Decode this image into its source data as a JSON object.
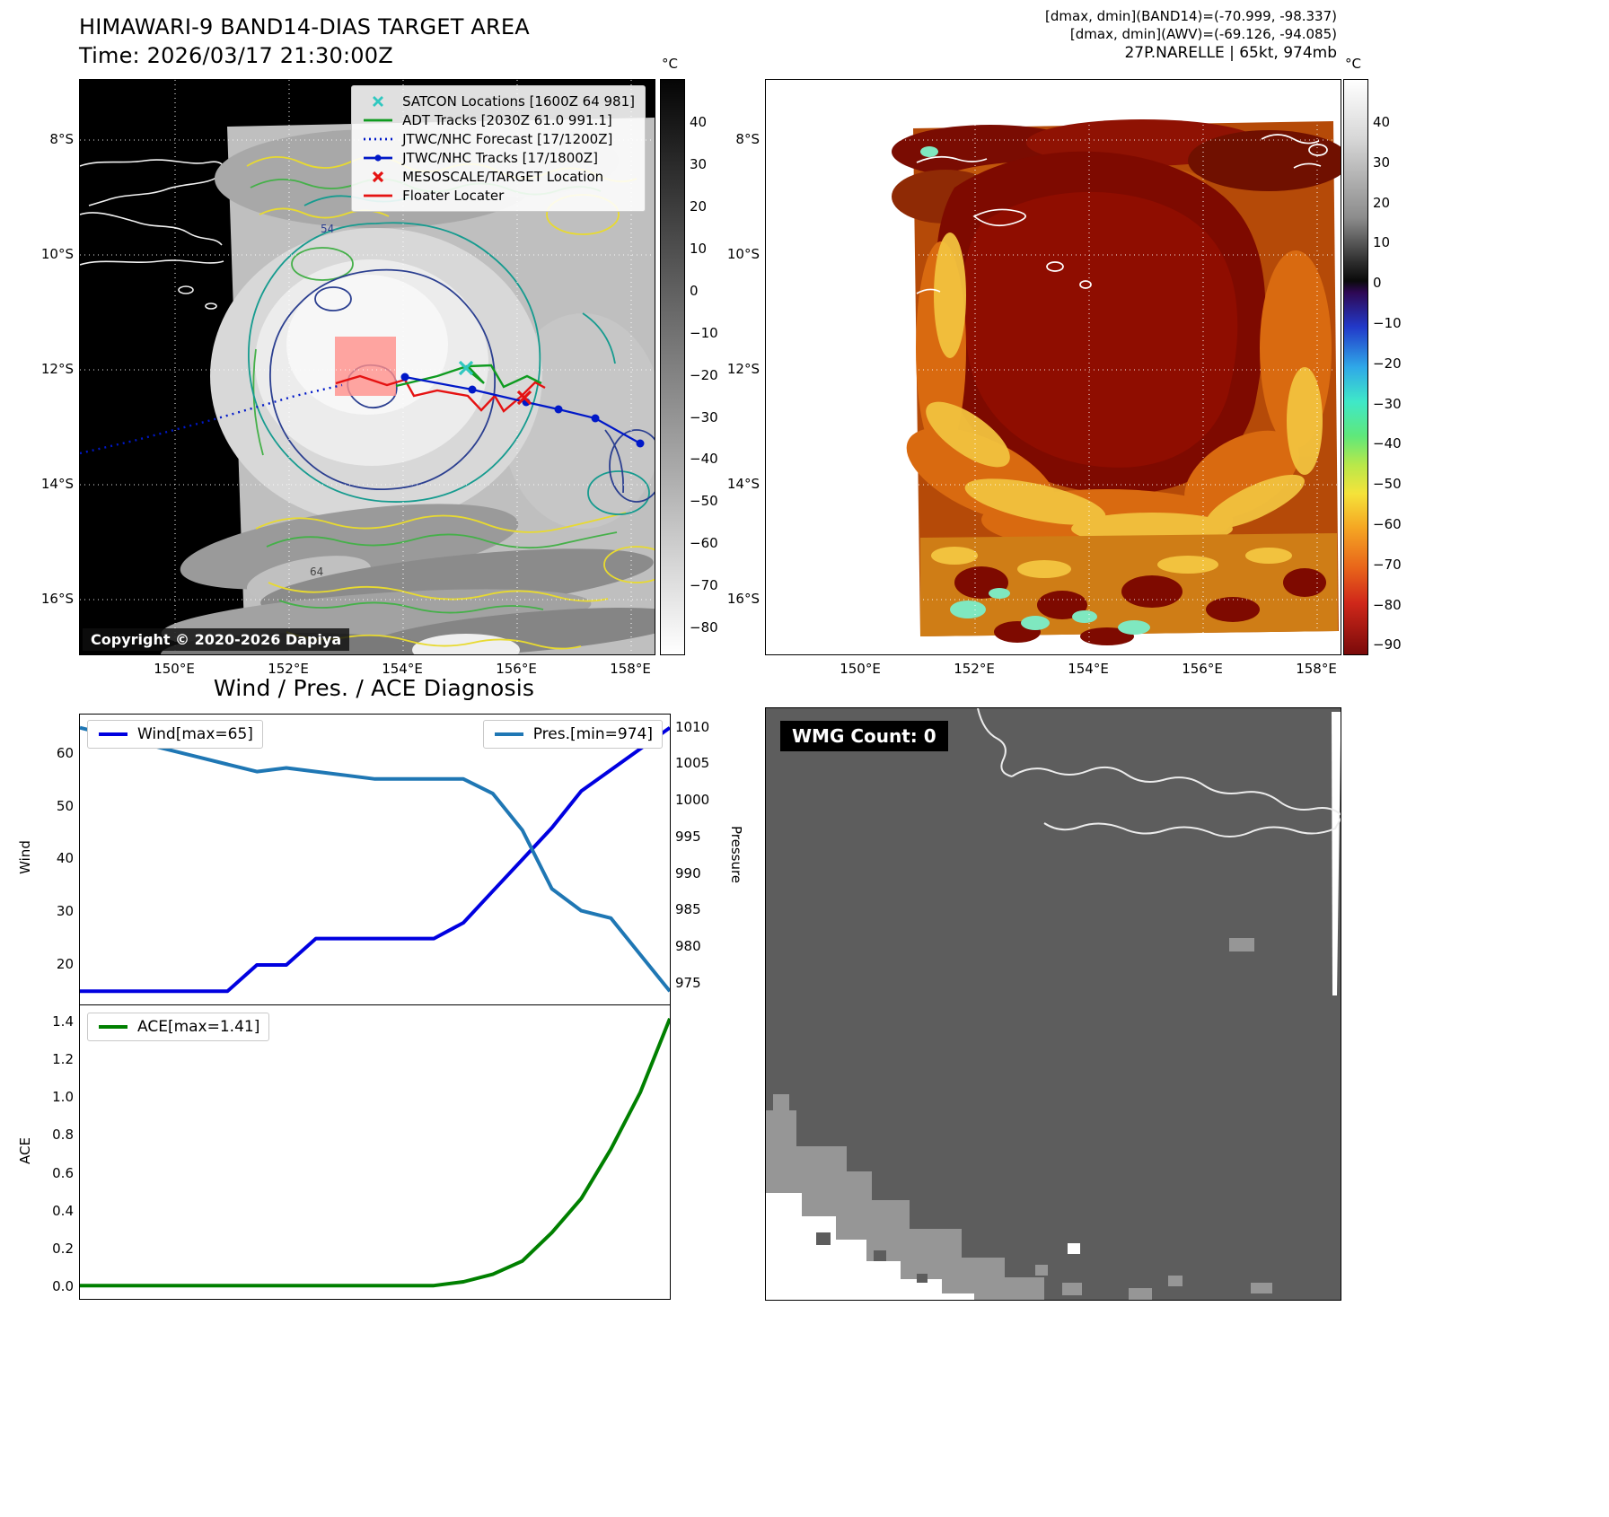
{
  "panel_band14": {
    "title": "HIMAWARI-9 BAND14-DIAS TARGET AREA",
    "subtitle": "Time: 2026/03/17 21:30:00Z",
    "copyright": "Copyright © 2020-2026 Dapiya",
    "colorbar_unit": "°C",
    "colorbar_ticks": [
      "40",
      "30",
      "20",
      "10",
      "0",
      "−10",
      "−20",
      "−30",
      "−40",
      "−50",
      "−60",
      "−70",
      "−80"
    ],
    "yticks": [
      "8°S",
      "10°S",
      "12°S",
      "14°S",
      "16°S"
    ],
    "xticks": [
      "150°E",
      "152°E",
      "154°E",
      "156°E",
      "158°E"
    ],
    "contour_labels": [
      "54",
      "64"
    ],
    "legend": [
      {
        "label": "SATCON Locations [1600Z 64 981]",
        "color": "#30c8c0",
        "marker": "x"
      },
      {
        "label": "ADT Tracks [2030Z 61.0 991.1]",
        "color": "#0f9b20",
        "marker": "line"
      },
      {
        "label": "JTWC/NHC Forecast [17/1200Z]",
        "color": "#0018c8",
        "marker": "dotted-line"
      },
      {
        "label": "JTWC/NHC Tracks [17/1800Z]",
        "color": "#0018c8",
        "marker": "line-dot"
      },
      {
        "label": "MESOSCALE/TARGET Location",
        "color": "#e51212",
        "marker": "x"
      },
      {
        "label": "Floater Locater",
        "color": "#e51212",
        "marker": "line"
      }
    ]
  },
  "panel_awv": {
    "header_line1": "[dmax, dmin](BAND14)=(-70.999, -98.337)",
    "header_line2": "[dmax, dmin](AWV)=(-69.126, -94.085)",
    "header_line3": "27P.NARELLE | 65kt, 974mb",
    "colorbar_unit": "°C",
    "colorbar_ticks": [
      "40",
      "30",
      "20",
      "10",
      "0",
      "−10",
      "−20",
      "−30",
      "−40",
      "−50",
      "−60",
      "−70",
      "−80",
      "−90"
    ],
    "yticks": [
      "8°S",
      "10°S",
      "12°S",
      "14°S",
      "16°S"
    ],
    "xticks": [
      "150°E",
      "152°E",
      "154°E",
      "156°E",
      "158°E"
    ]
  },
  "diagnosis": {
    "title": "Wind / Pres. / ACE Diagnosis",
    "wind_ylabel": "Wind",
    "pres_ylabel": "Pressure",
    "ace_ylabel": "ACE",
    "wind_yticks": [
      "60",
      "50",
      "40",
      "30",
      "20"
    ],
    "pres_yticks": [
      "1010",
      "1005",
      "1000",
      "995",
      "990",
      "985",
      "980",
      "975"
    ],
    "ace_yticks": [
      "1.4",
      "1.2",
      "1.0",
      "0.8",
      "0.6",
      "0.4",
      "0.2",
      "0.0"
    ]
  },
  "wmg": {
    "label": "WMG Count: 0"
  },
  "chart_data": [
    {
      "type": "line",
      "title": "Wind / Pres. / ACE Diagnosis",
      "x_axis": "time (unlabeled)",
      "legend_position": "upper-left / upper-right",
      "series": [
        {
          "name": "Wind[max=65]",
          "axis": "left",
          "color": "#0000e0",
          "max": 65,
          "values": [
            15,
            15,
            15,
            15,
            15,
            15,
            20,
            20,
            25,
            25,
            25,
            25,
            25,
            28,
            34,
            40,
            46,
            53,
            57,
            61,
            65
          ]
        },
        {
          "name": "Pres.[min=974]",
          "axis": "right",
          "color": "#1f77b4",
          "min": 974,
          "values": [
            1010,
            1009,
            1008,
            1007,
            1006,
            1005,
            1004,
            1004.5,
            1004,
            1003.5,
            1003,
            1003,
            1003,
            1003,
            1001,
            996,
            988,
            985,
            984,
            979,
            974
          ]
        }
      ],
      "left_ylabel": "Wind",
      "right_ylabel": "Pressure",
      "left_ylim": [
        12.5,
        67.5
      ],
      "right_ylim": [
        972.2,
        1011.8
      ],
      "left_ticks": [
        20,
        30,
        40,
        50,
        60
      ],
      "right_ticks": [
        975,
        980,
        985,
        990,
        995,
        1000,
        1005,
        1010
      ]
    },
    {
      "type": "line",
      "legend_position": "upper-left",
      "series": [
        {
          "name": "ACE[max=1.41]",
          "axis": "left",
          "color": "#008000",
          "max": 1.41,
          "values": [
            0,
            0,
            0,
            0,
            0,
            0,
            0,
            0,
            0,
            0,
            0,
            0,
            0,
            0.02,
            0.06,
            0.13,
            0.28,
            0.46,
            0.72,
            1.02,
            1.41
          ]
        }
      ],
      "left_ylabel": "ACE",
      "left_ylim": [
        -0.07,
        1.48
      ],
      "left_ticks": [
        0.0,
        0.2,
        0.4,
        0.6,
        0.8,
        1.0,
        1.2,
        1.4
      ]
    }
  ]
}
